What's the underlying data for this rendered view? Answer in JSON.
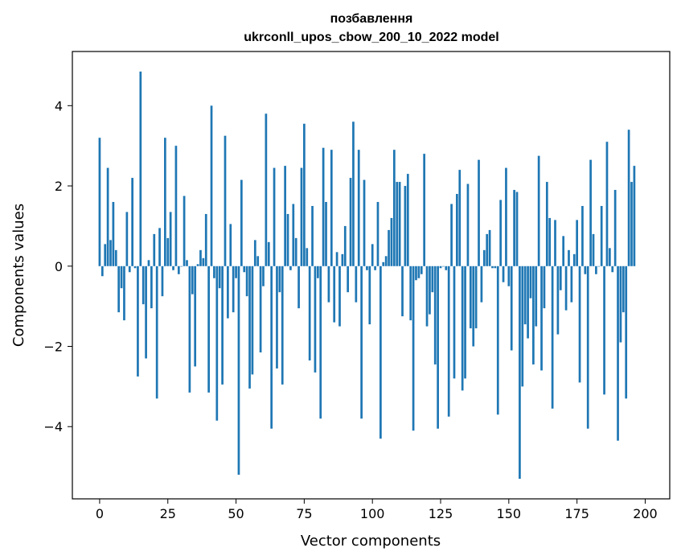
{
  "chart_data": {
    "type": "bar",
    "title_line1": "позбавлення",
    "title_line2": "ukrconll_upos_cbow_200_10_2022 model",
    "xlabel": "Vector components",
    "ylabel": "Components values",
    "xlim": [
      -10,
      209
    ],
    "ylim": [
      -5.8,
      5.35
    ],
    "xticks": [
      0,
      25,
      50,
      75,
      100,
      125,
      150,
      175,
      200
    ],
    "yticks": [
      -4,
      -2,
      0,
      2,
      4
    ],
    "ytick_labels": [
      "−4",
      "−2",
      "0",
      "2",
      "4"
    ],
    "bar_color": "#1f77b4",
    "grid": false,
    "values": [
      3.2,
      -0.25,
      0.55,
      2.45,
      0.65,
      1.6,
      0.4,
      -1.15,
      -0.55,
      -1.35,
      1.35,
      -0.15,
      2.2,
      -0.05,
      -2.75,
      4.85,
      -0.95,
      -2.3,
      0.15,
      -1.05,
      0.8,
      -3.3,
      0.95,
      -0.75,
      3.2,
      0.7,
      1.35,
      -0.1,
      3.0,
      -0.2,
      0.0,
      1.75,
      0.15,
      -3.15,
      -0.7,
      -2.5,
      0.05,
      0.4,
      0.2,
      1.3,
      -3.15,
      4.0,
      -0.3,
      -3.85,
      -0.55,
      -2.95,
      3.25,
      -1.3,
      1.05,
      -1.15,
      -0.3,
      -5.2,
      2.15,
      -0.15,
      -0.75,
      -3.05,
      -2.7,
      0.65,
      0.25,
      -2.15,
      -0.5,
      3.8,
      0.6,
      -4.05,
      2.45,
      -2.55,
      -0.65,
      -2.95,
      2.5,
      1.3,
      -0.1,
      1.55,
      0.7,
      -1.05,
      2.45,
      3.55,
      0.45,
      -2.35,
      1.5,
      -2.65,
      -0.3,
      -3.8,
      2.95,
      1.6,
      -0.9,
      2.9,
      -1.4,
      0.35,
      -1.5,
      0.3,
      1.0,
      -0.65,
      2.2,
      3.6,
      -0.9,
      2.9,
      -3.8,
      2.15,
      -0.1,
      -1.45,
      0.55,
      -0.1,
      1.6,
      -4.3,
      0.1,
      0.25,
      0.9,
      1.2,
      2.9,
      2.1,
      2.1,
      -1.25,
      2.0,
      2.3,
      -1.35,
      -4.1,
      -0.35,
      -0.3,
      -0.2,
      2.8,
      -1.5,
      -1.2,
      -0.65,
      -2.45,
      -4.05,
      -0.05,
      0.0,
      -0.1,
      -3.75,
      1.55,
      -2.8,
      1.8,
      2.4,
      -3.1,
      -2.8,
      2.05,
      -1.55,
      -2.0,
      -1.55,
      2.65,
      -0.9,
      0.4,
      0.8,
      0.9,
      -0.05,
      -0.05,
      -3.7,
      1.65,
      -0.4,
      2.45,
      -0.5,
      -2.1,
      1.9,
      1.85,
      -5.3,
      -3.0,
      -1.45,
      -1.8,
      -0.8,
      -2.45,
      -1.5,
      2.75,
      -2.6,
      -1.05,
      2.1,
      1.2,
      -3.55,
      1.15,
      -1.7,
      -0.6,
      0.75,
      -1.1,
      0.4,
      -0.9,
      0.3,
      1.15,
      -2.9,
      1.5,
      -0.2,
      -4.05,
      2.65,
      0.8,
      -0.2,
      0.0,
      1.5,
      -3.2,
      3.1,
      0.45,
      -0.15,
      1.9,
      -4.35,
      -1.9,
      -1.15,
      -3.3,
      3.4,
      2.1,
      2.5
    ]
  }
}
